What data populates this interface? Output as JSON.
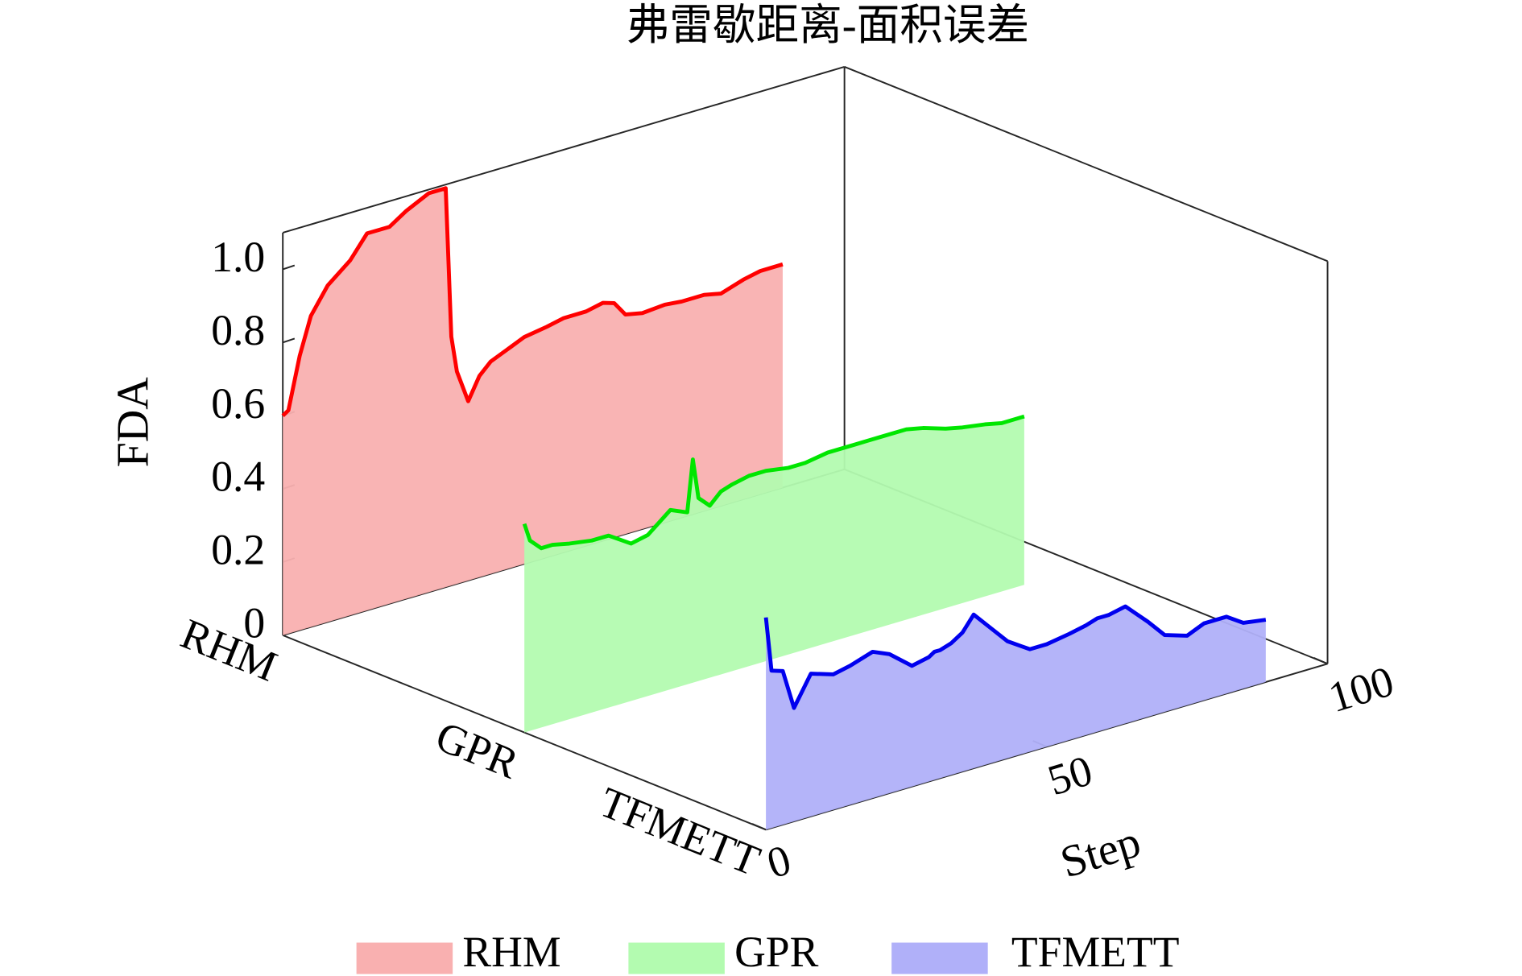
{
  "chart_data": {
    "type": "waterfall3d",
    "title": "弗雷歇距离-面积误差",
    "xlabel": "Step",
    "zlabel": "FDA",
    "categories": [
      "RHM",
      "GPR",
      "TFMETT"
    ],
    "x": [
      0,
      1,
      3,
      5,
      8,
      12,
      15,
      19,
      22,
      26,
      29,
      30,
      31,
      33,
      35,
      37,
      40,
      43,
      47,
      50,
      54,
      57,
      59,
      61,
      64,
      68,
      71,
      75,
      78,
      82,
      85,
      89
    ],
    "series": [
      {
        "name": "RHM",
        "color": "#ff0000",
        "fill": "#f9b0b0",
        "values": [
          0.6,
          0.61,
          0.75,
          0.85,
          0.92,
          0.97,
          1.03,
          1.03,
          1.06,
          1.09,
          1.09,
          0.68,
          0.58,
          0.49,
          0.55,
          0.58,
          0.6,
          0.62,
          0.63,
          0.64,
          0.64,
          0.65,
          0.64,
          0.6,
          0.59,
          0.595,
          0.59,
          0.59,
          0.58,
          0.6,
          0.61,
          0.61
        ]
      },
      {
        "name": "GPR",
        "color": "#00e600",
        "fill": "#b3fbb0",
        "values": [
          0.57,
          0.52,
          0.49,
          0.49,
          0.48,
          0.47,
          0.47,
          0.43,
          0.44,
          0.49,
          0.47,
          0.61,
          0.5,
          0.47,
          0.5,
          0.51,
          0.52,
          0.52,
          0.51,
          0.51,
          0.52,
          0.52,
          0.52,
          0.52,
          0.52,
          0.52,
          0.51,
          0.49,
          0.48,
          0.47,
          0.46,
          0.46
        ]
      },
      {
        "name": "TFMETT",
        "color": "#0000ee",
        "fill": "#b0b0f9",
        "values": [
          0.58,
          0.43,
          0.42,
          0.31,
          0.39,
          0.37,
          0.38,
          0.4,
          0.38,
          0.33,
          0.34,
          0.35,
          0.35,
          0.36,
          0.38,
          0.42,
          0.37,
          0.32,
          0.28,
          0.28,
          0.29,
          0.3,
          0.31,
          0.31,
          0.32,
          0.26,
          0.21,
          0.19,
          0.21,
          0.21,
          0.18,
          0.17
        ]
      }
    ],
    "xlim": [
      0,
      100
    ],
    "xticks": [
      0,
      50,
      100
    ],
    "zlim": [
      0,
      1.1
    ],
    "zticks": [
      0,
      0.2,
      0.4,
      0.6,
      0.8,
      {
        "value": 1,
        "label": "1.0"
      }
    ],
    "legend": "bottom"
  }
}
